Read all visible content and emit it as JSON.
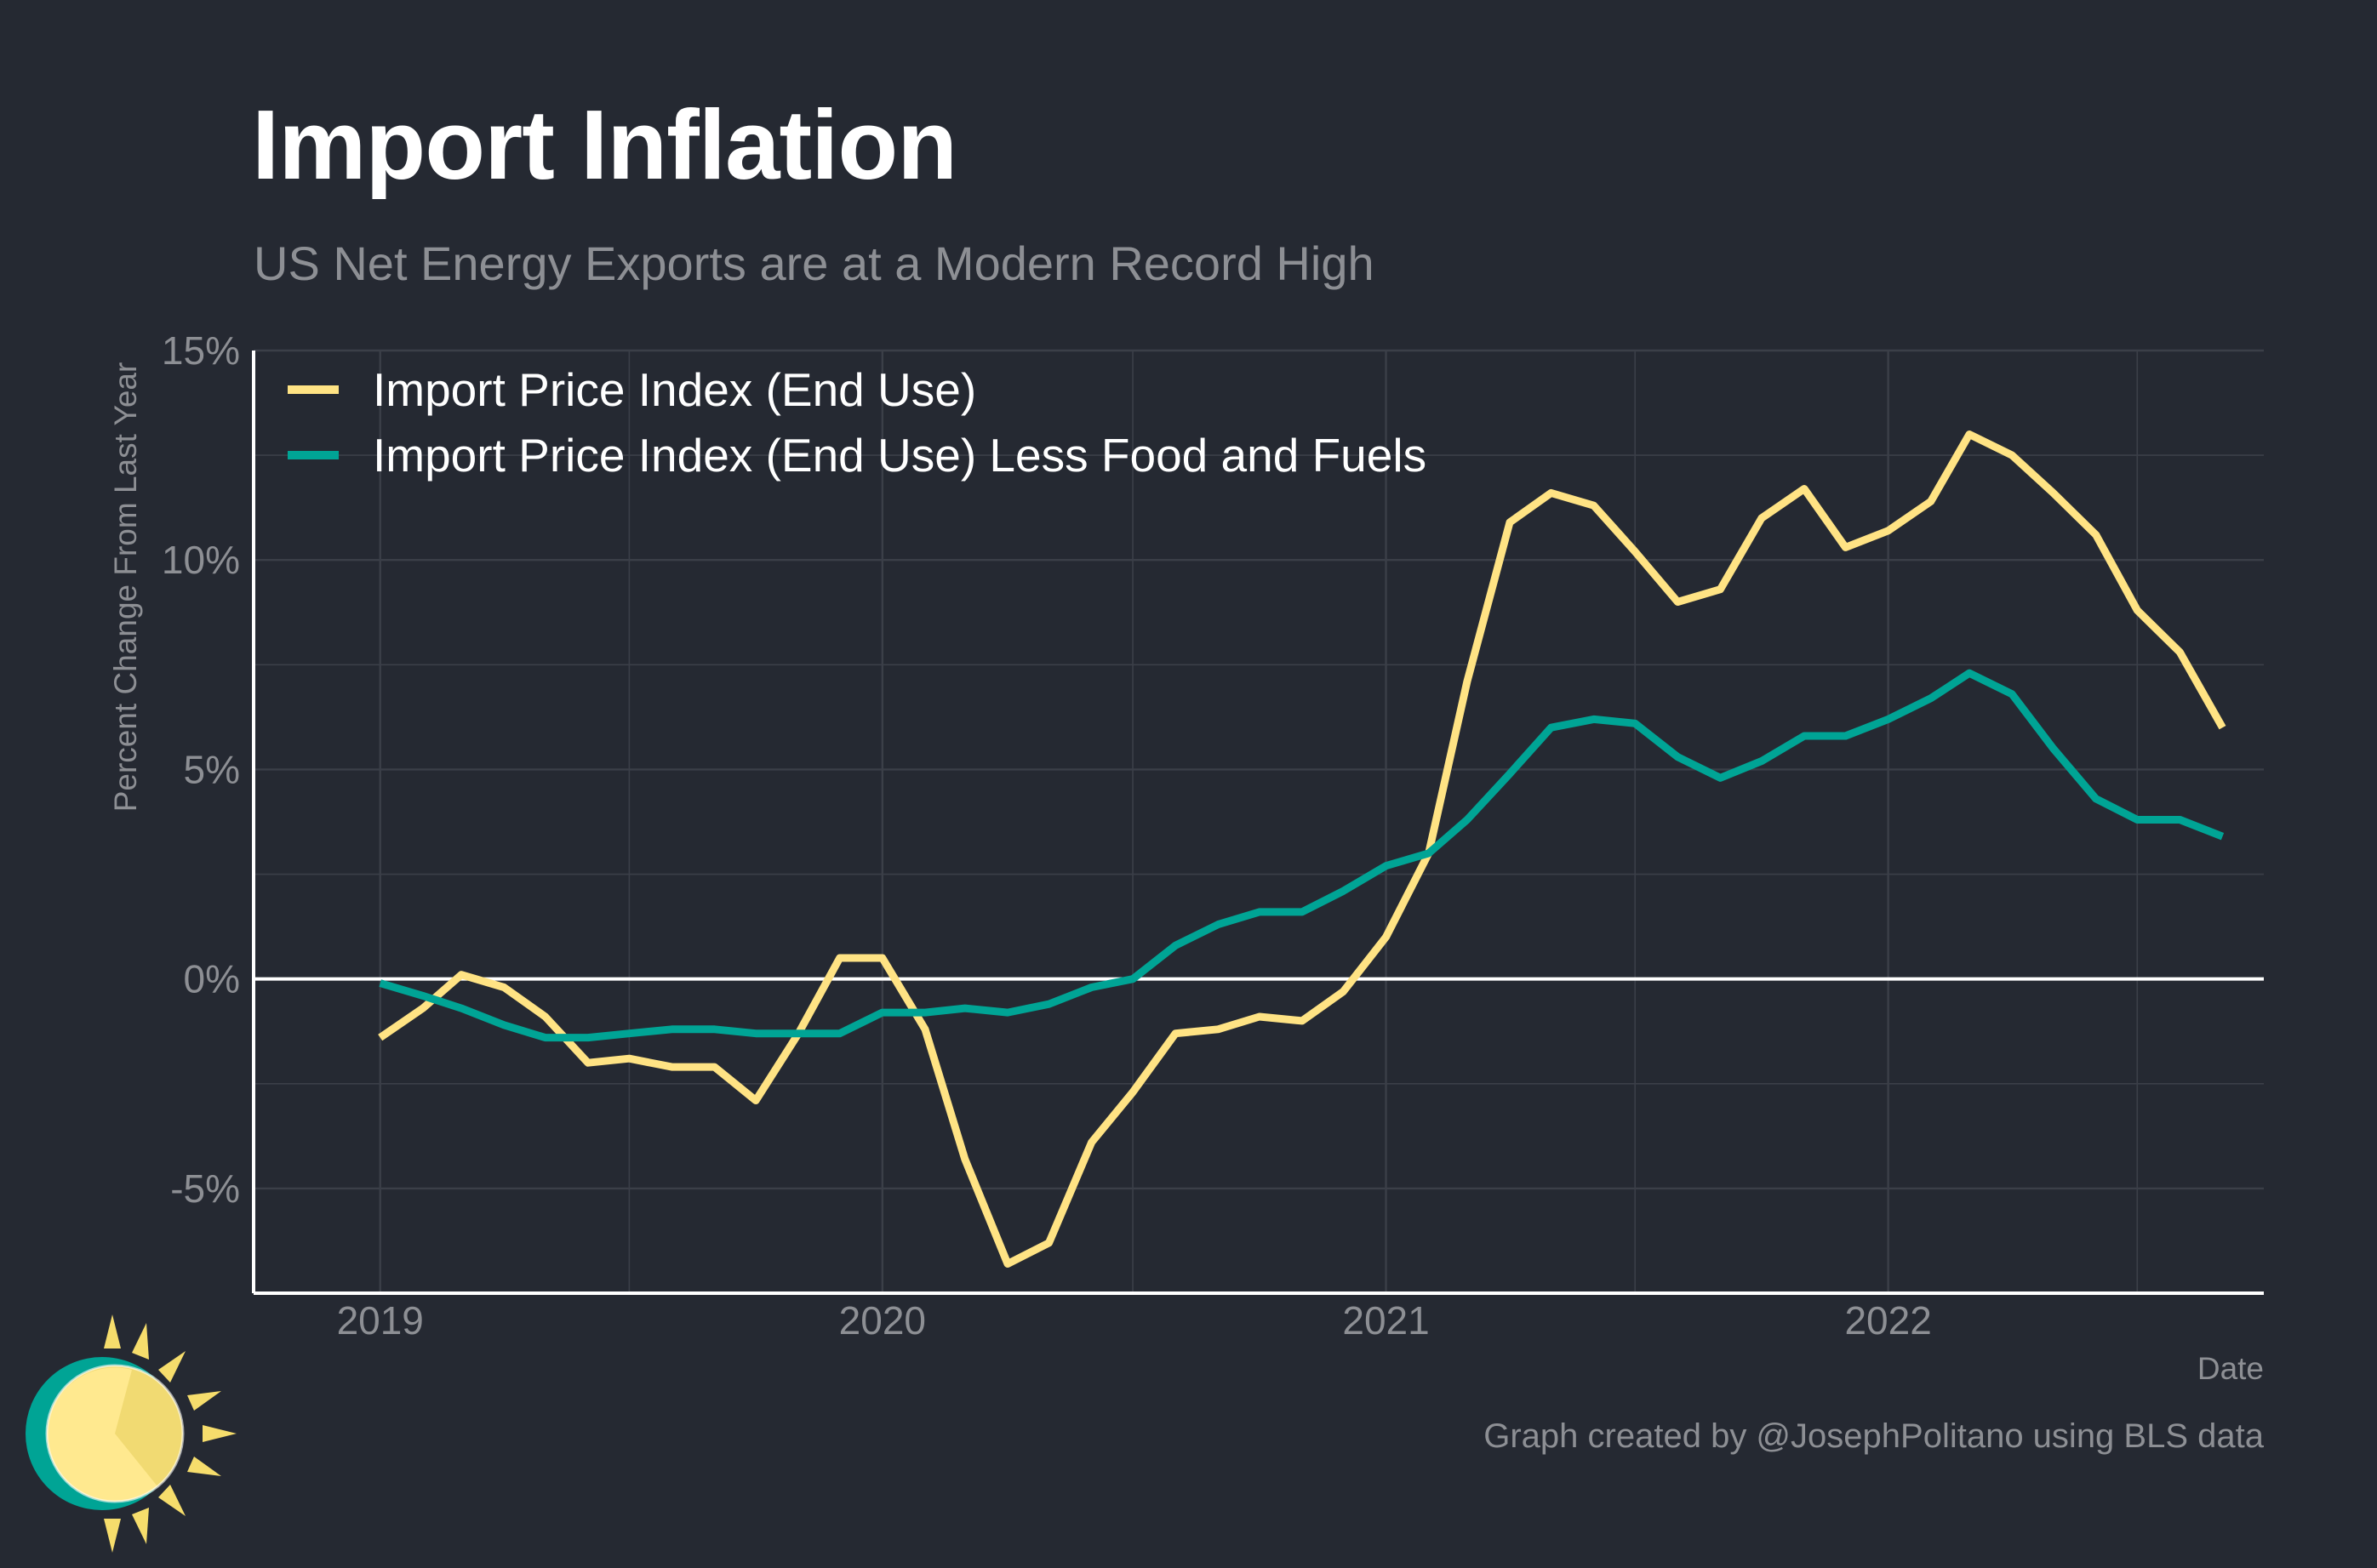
{
  "header": {
    "title": "Import Inflation",
    "subtitle": "US Net Energy Exports are at a Modern Record High"
  },
  "footer": {
    "caption": "Graph created by @JosephPolitano using BLS data"
  },
  "colors": {
    "background": "#252932",
    "grid": "#3b3f48",
    "series_yellow": "#ffe384",
    "series_teal": "#00a495",
    "zero_line": "#ffffff",
    "axis_text": "#8d8f94"
  },
  "icons": {
    "logo": "sun-logo-icon"
  },
  "chart_data": {
    "type": "line",
    "xlabel": "Date",
    "ylabel": "Percent Change From Last Year",
    "xlim": [
      "2018-10-01",
      "2022-10-01"
    ],
    "ylim": [
      -7.5,
      15
    ],
    "x_ticks": [
      "2019",
      "2020",
      "2021",
      "2022"
    ],
    "y_ticks": [
      "-5%",
      "0%",
      "5%",
      "10%",
      "15%"
    ],
    "grid": true,
    "legend_position": "top-left",
    "x": [
      "2019-01",
      "2019-02",
      "2019-03",
      "2019-04",
      "2019-05",
      "2019-06",
      "2019-07",
      "2019-08",
      "2019-09",
      "2019-10",
      "2019-11",
      "2019-12",
      "2020-01",
      "2020-02",
      "2020-03",
      "2020-04",
      "2020-05",
      "2020-06",
      "2020-07",
      "2020-08",
      "2020-09",
      "2020-10",
      "2020-11",
      "2020-12",
      "2021-01",
      "2021-02",
      "2021-03",
      "2021-04",
      "2021-05",
      "2021-06",
      "2021-07",
      "2021-08",
      "2021-09",
      "2021-10",
      "2021-11",
      "2021-12",
      "2022-01",
      "2022-02",
      "2022-03",
      "2022-04",
      "2022-05",
      "2022-06",
      "2022-07",
      "2022-08",
      "2022-09"
    ],
    "series": [
      {
        "name": "Import Price Index (End Use)",
        "color": "#ffe384",
        "values": [
          -1.4,
          -0.7,
          0.1,
          -0.2,
          -0.9,
          -2.0,
          -1.9,
          -2.1,
          -2.1,
          -2.9,
          -1.3,
          0.5,
          0.5,
          -1.2,
          -4.3,
          -6.8,
          -6.3,
          -3.9,
          -2.7,
          -1.3,
          -1.2,
          -0.9,
          -1.0,
          -0.3,
          1.0,
          3.0,
          7.1,
          10.9,
          11.6,
          11.3,
          10.2,
          9.0,
          9.3,
          11.0,
          11.7,
          10.3,
          10.7,
          11.4,
          13.0,
          12.5,
          11.6,
          10.6,
          8.8,
          7.8,
          6.0
        ]
      },
      {
        "name": "Import Price Index (End Use) Less Food and Fuels",
        "color": "#00a495",
        "values": [
          -0.1,
          -0.4,
          -0.7,
          -1.1,
          -1.4,
          -1.4,
          -1.3,
          -1.2,
          -1.2,
          -1.3,
          -1.3,
          -1.3,
          -0.8,
          -0.8,
          -0.7,
          -0.8,
          -0.6,
          -0.2,
          0.0,
          0.8,
          1.3,
          1.6,
          1.6,
          2.1,
          2.7,
          3.0,
          3.8,
          4.9,
          6.0,
          6.2,
          6.1,
          5.3,
          4.8,
          5.2,
          5.8,
          5.8,
          6.2,
          6.7,
          7.3,
          6.8,
          5.5,
          4.3,
          3.8,
          3.8,
          3.4
        ]
      }
    ]
  }
}
